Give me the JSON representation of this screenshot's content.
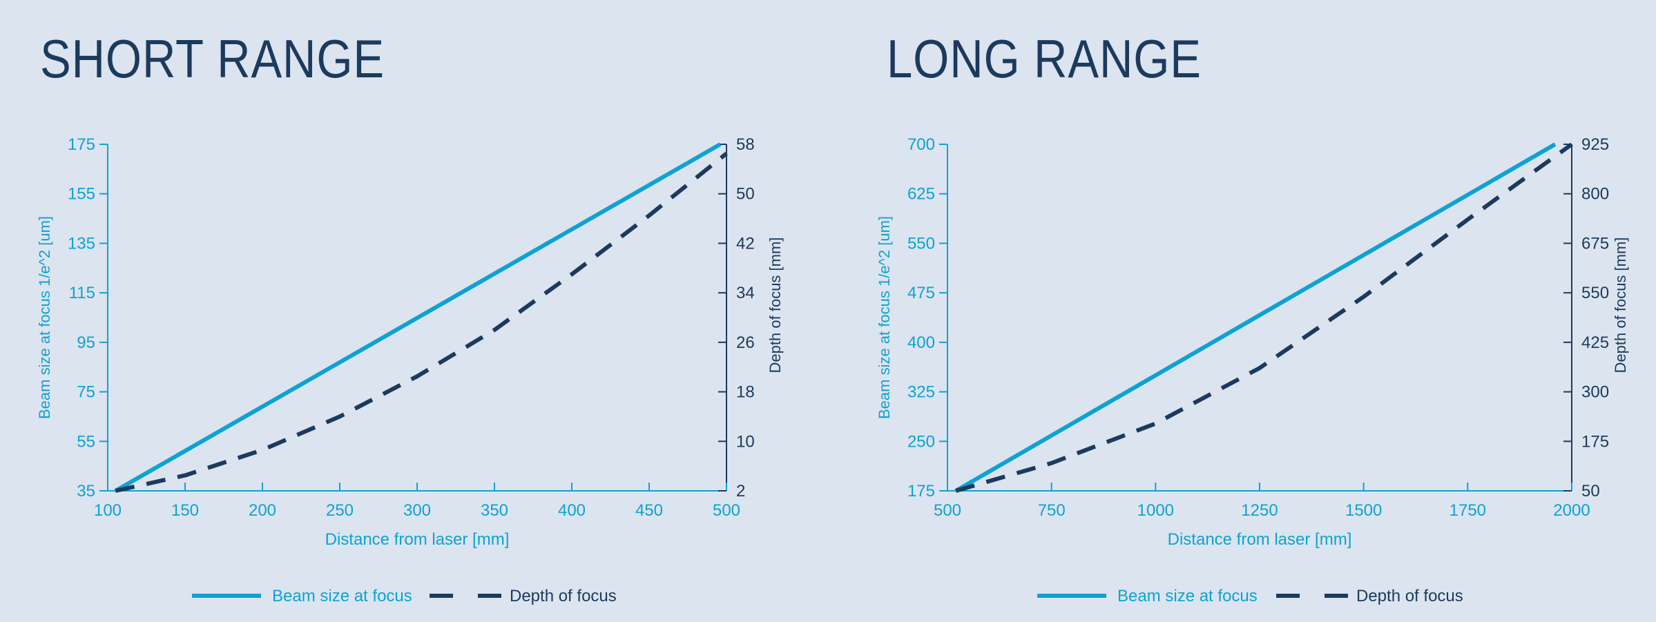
{
  "colors": {
    "background": "#dce4ef",
    "beam": "#0ea2d4",
    "depth": "#1b3a5e"
  },
  "panels": [
    {
      "title": "SHORT RANGE",
      "chart_data": {
        "type": "line",
        "title": "SHORT RANGE",
        "xlabel": "Distance from laser [mm]",
        "ylabel": "Beam size at focus 1/e^2 [um]",
        "y2label": "Depth of focus [mm]",
        "xlim": [
          100,
          500
        ],
        "ylim": [
          35,
          175
        ],
        "y2lim": [
          2,
          58
        ],
        "x_ticks": [
          "100",
          "150",
          "200",
          "250",
          "300",
          "350",
          "400",
          "450",
          "500"
        ],
        "y_ticks": [
          "35",
          "55",
          "75",
          "95",
          "115",
          "135",
          "155",
          "175"
        ],
        "y2_ticks": [
          "2",
          "10",
          "18",
          "26",
          "34",
          "42",
          "50",
          "58"
        ],
        "grid": false,
        "legend_position": "bottom-center",
        "series": [
          {
            "name": "Beam size at focus",
            "axis": "left",
            "style": "solid",
            "x": [
              105,
              496
            ],
            "y": [
              35,
              175
            ]
          },
          {
            "name": "Depth of focus",
            "axis": "right",
            "style": "dashed",
            "x": [
              105,
              150,
              200,
              250,
              300,
              350,
              400,
              450,
              500
            ],
            "y": [
              2,
              4.5,
              8.6,
              14,
              20.5,
              28,
              37,
              46.5,
              56.5
            ]
          }
        ]
      }
    },
    {
      "title": "LONG RANGE",
      "chart_data": {
        "type": "line",
        "title": "LONG RANGE",
        "xlabel": "Distance from laser [mm]",
        "ylabel": "Beam size at focus 1/e^2 [um]",
        "y2label": "Depth of focus [mm]",
        "xlim": [
          500,
          2000
        ],
        "ylim": [
          175,
          700
        ],
        "y2lim": [
          50,
          925
        ],
        "x_ticks": [
          "500",
          "750",
          "1000",
          "1250",
          "1500",
          "1750",
          "2000"
        ],
        "y_ticks": [
          "175",
          "250",
          "325",
          "400",
          "475",
          "550",
          "625",
          "700"
        ],
        "y2_ticks": [
          "50",
          "175",
          "300",
          "425",
          "550",
          "675",
          "800",
          "925"
        ],
        "grid": false,
        "legend_position": "bottom-center",
        "series": [
          {
            "name": "Beam size at focus",
            "axis": "left",
            "style": "solid",
            "x": [
              520,
              1960
            ],
            "y": [
              175,
              700
            ]
          },
          {
            "name": "Depth of focus",
            "axis": "right",
            "style": "dashed",
            "x": [
              520,
              750,
              1000,
              1250,
              1500,
              1750,
              2000
            ],
            "y": [
              50,
              120,
              220,
              360,
              540,
              735,
              925
            ]
          }
        ]
      }
    }
  ]
}
